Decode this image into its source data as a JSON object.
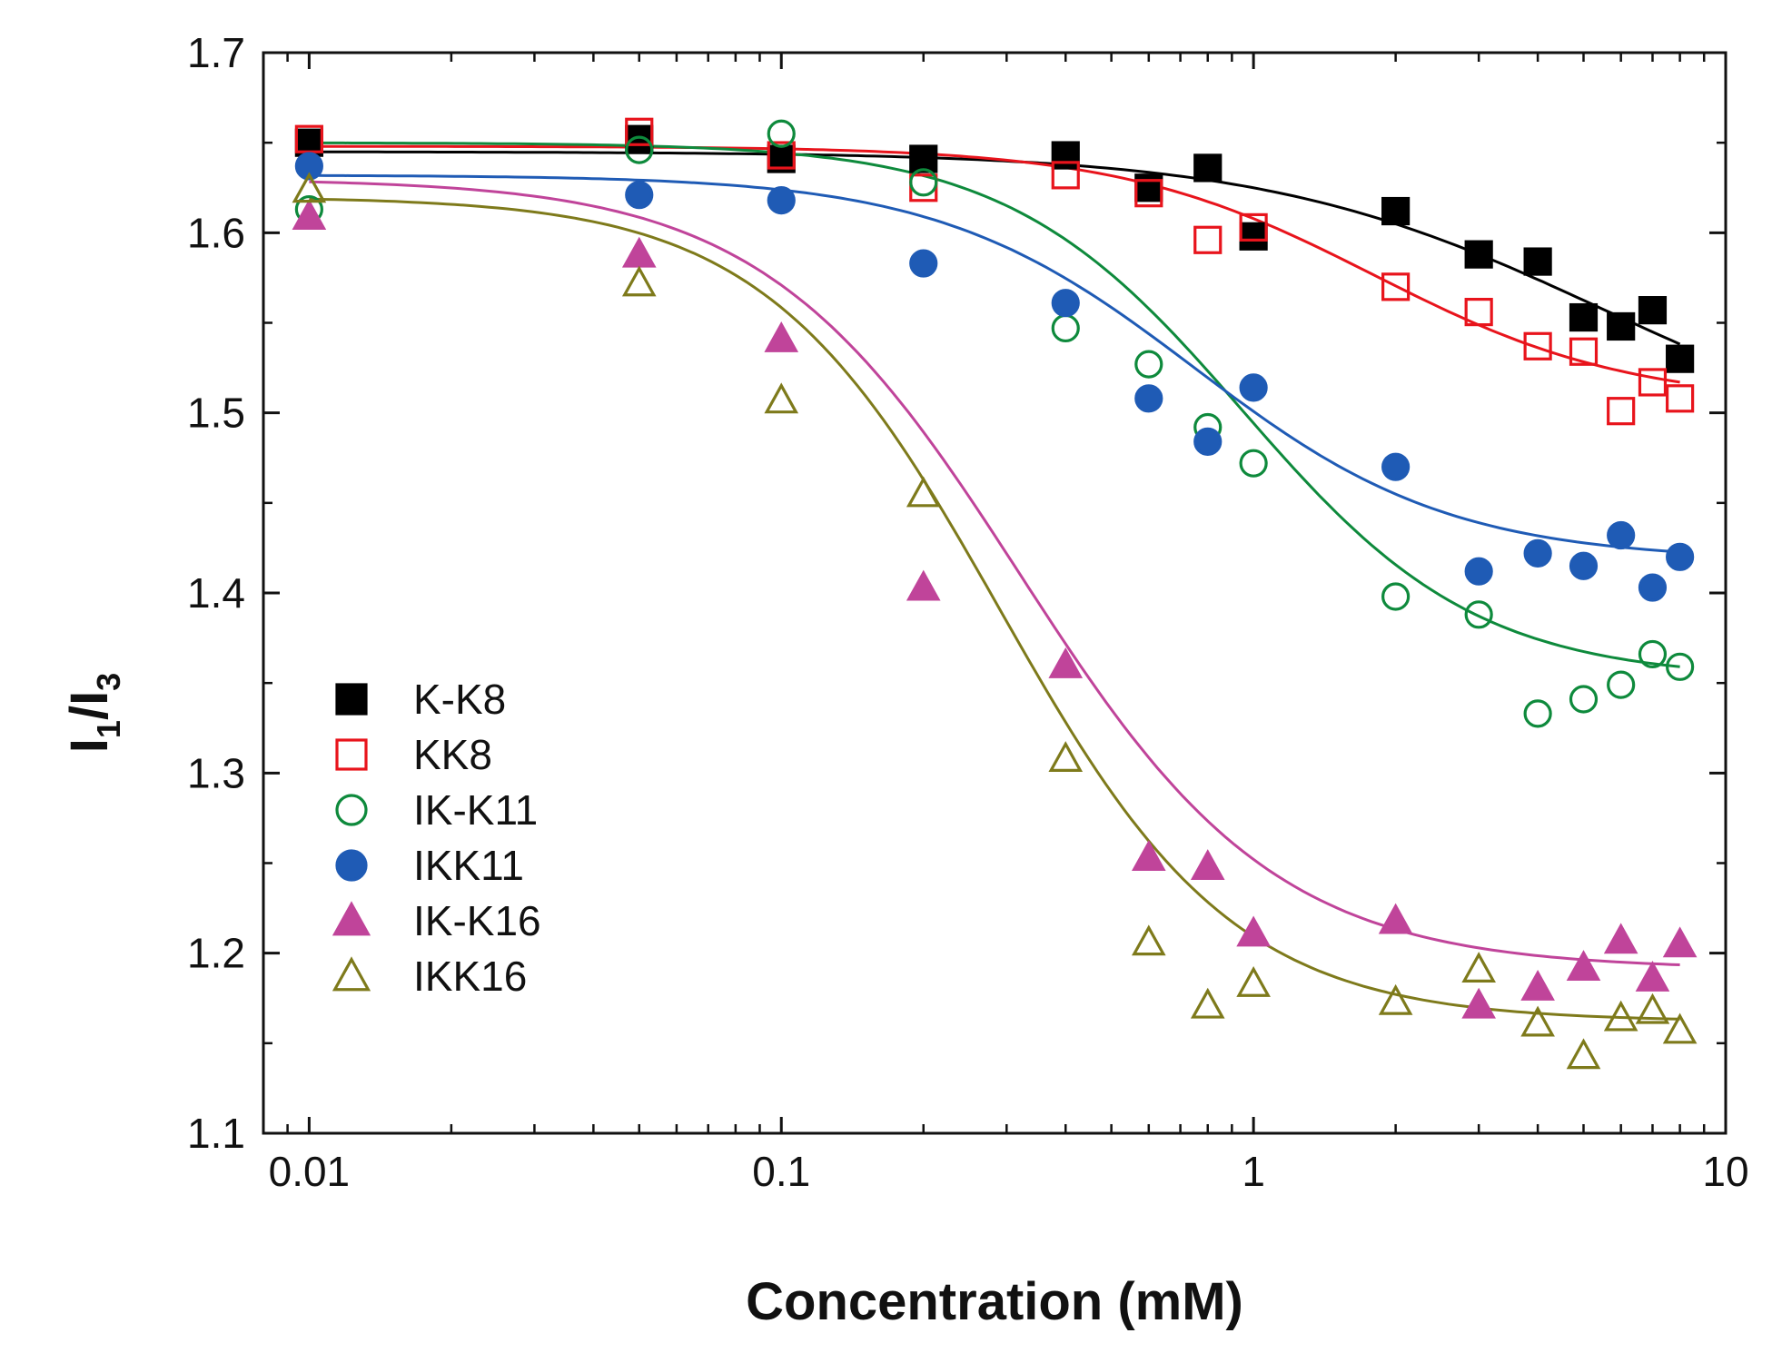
{
  "chart_data": {
    "type": "scatter",
    "xscale": "log",
    "xlabel": "Concentration (mM)",
    "ylabel": {
      "main": "I",
      "sub1": "1",
      "slash": "/I",
      "sub3": "3"
    },
    "xlim": [
      0.008,
      10
    ],
    "ylim": [
      1.1,
      1.7
    ],
    "x_ticks": [
      {
        "value": 0.01,
        "label": "0.01"
      },
      {
        "value": 0.1,
        "label": "0.1"
      },
      {
        "value": 1,
        "label": "1"
      },
      {
        "value": 10,
        "label": "10"
      }
    ],
    "y_ticks": [
      {
        "value": 1.1,
        "label": "1.1"
      },
      {
        "value": 1.2,
        "label": "1.2"
      },
      {
        "value": 1.3,
        "label": "1.3"
      },
      {
        "value": 1.4,
        "label": "1.4"
      },
      {
        "value": 1.5,
        "label": "1.5"
      },
      {
        "value": 1.6,
        "label": "1.6"
      },
      {
        "value": 1.7,
        "label": "1.7"
      }
    ],
    "grid": false,
    "legend_position": "middle-left",
    "series": [
      {
        "name": "K-K8",
        "color": "#000000",
        "marker": "square",
        "filled": true,
        "x": [
          0.01,
          0.05,
          0.1,
          0.2,
          0.4,
          0.6,
          0.8,
          1,
          2,
          3,
          4,
          5,
          6,
          7,
          8
        ],
        "y": [
          1.65,
          1.652,
          1.641,
          1.641,
          1.643,
          1.625,
          1.636,
          1.598,
          1.612,
          1.588,
          1.584,
          1.553,
          1.548,
          1.557,
          1.53
        ],
        "fit": {
          "top": 1.645,
          "bottom": 1.47,
          "x0": 5.5,
          "p": 1.2
        }
      },
      {
        "name": "KK8",
        "color": "#e8141c",
        "marker": "square",
        "filled": false,
        "x": [
          0.01,
          0.05,
          0.1,
          0.2,
          0.4,
          0.6,
          0.8,
          1,
          2,
          3,
          4,
          5,
          6,
          7,
          8
        ],
        "y": [
          1.652,
          1.656,
          1.643,
          1.625,
          1.632,
          1.622,
          1.596,
          1.603,
          1.57,
          1.556,
          1.537,
          1.534,
          1.501,
          1.517,
          1.508
        ],
        "fit": {
          "top": 1.648,
          "bottom": 1.505,
          "x0": 1.8,
          "p": 1.6
        }
      },
      {
        "name": "IK-K11",
        "color": "#0e8a3c",
        "marker": "circle",
        "filled": false,
        "x": [
          0.01,
          0.05,
          0.1,
          0.2,
          0.4,
          0.6,
          0.8,
          1,
          2,
          3,
          4,
          5,
          6,
          7,
          8
        ],
        "y": [
          1.613,
          1.646,
          1.655,
          1.628,
          1.547,
          1.527,
          1.492,
          1.472,
          1.398,
          1.388,
          1.333,
          1.341,
          1.349,
          1.366,
          1.359
        ],
        "fit": {
          "top": 1.65,
          "bottom": 1.352,
          "x0": 0.95,
          "p": 1.75
        }
      },
      {
        "name": "IKK11",
        "color": "#1f5bb5",
        "marker": "circle",
        "filled": true,
        "x": [
          0.01,
          0.05,
          0.1,
          0.2,
          0.4,
          0.6,
          0.8,
          1,
          2,
          3,
          4,
          5,
          6,
          7,
          8
        ],
        "y": [
          1.637,
          1.621,
          1.618,
          1.583,
          1.561,
          1.508,
          1.484,
          1.514,
          1.47,
          1.412,
          1.422,
          1.415,
          1.432,
          1.403,
          1.42
        ],
        "fit": {
          "top": 1.632,
          "bottom": 1.418,
          "x0": 0.75,
          "p": 1.6
        }
      },
      {
        "name": "IK-K16",
        "color": "#c0449a",
        "marker": "triangle",
        "filled": true,
        "x": [
          0.01,
          0.05,
          0.1,
          0.2,
          0.4,
          0.6,
          0.8,
          1,
          2,
          3,
          4,
          5,
          6,
          7,
          8
        ],
        "y": [
          1.609,
          1.588,
          1.541,
          1.403,
          1.36,
          1.253,
          1.248,
          1.211,
          1.218,
          1.171,
          1.181,
          1.192,
          1.207,
          1.186,
          1.205
        ],
        "fit": {
          "top": 1.63,
          "bottom": 1.191,
          "x0": 0.32,
          "p": 1.6
        }
      },
      {
        "name": "IKK16",
        "color": "#7e7a1b",
        "marker": "triangle",
        "filled": false,
        "x": [
          0.01,
          0.05,
          0.1,
          0.2,
          0.4,
          0.6,
          0.8,
          1,
          2,
          3,
          4,
          5,
          6,
          7,
          8
        ],
        "y": [
          1.624,
          1.572,
          1.507,
          1.455,
          1.308,
          1.206,
          1.171,
          1.183,
          1.173,
          1.191,
          1.161,
          1.143,
          1.164,
          1.168,
          1.157
        ],
        "fit": {
          "top": 1.62,
          "bottom": 1.162,
          "x0": 0.29,
          "p": 1.75
        }
      }
    ]
  }
}
